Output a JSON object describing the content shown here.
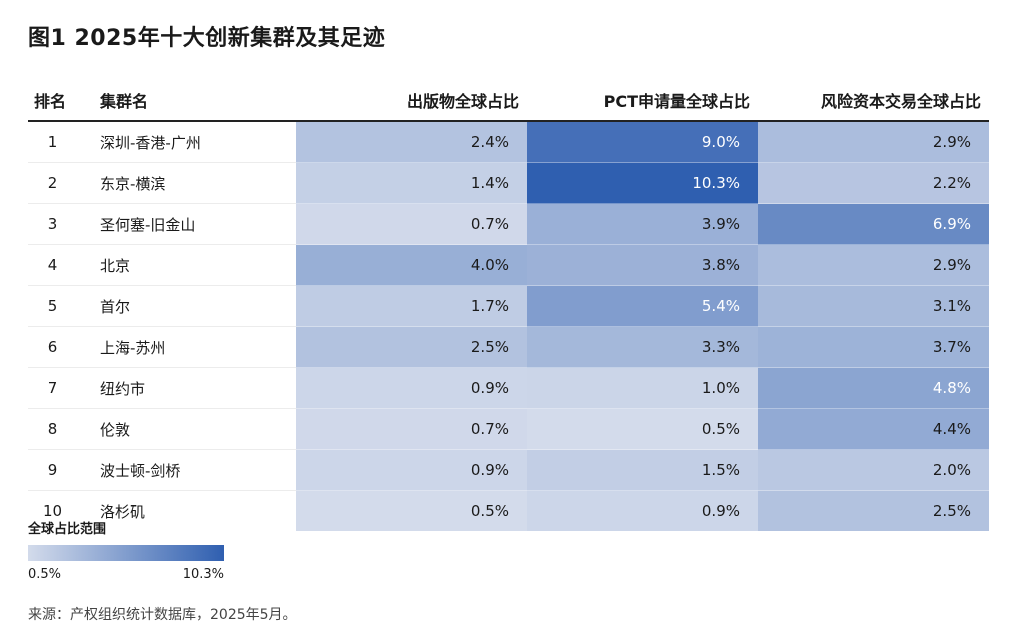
{
  "title": "图1 2025年十大创新集群及其足迹",
  "headers": {
    "rank": "排名",
    "name": "集群名",
    "pub": "出版物全球占比",
    "pct": "PCT申请量全球占比",
    "vc": "风险资本交易全球占比"
  },
  "rows": [
    {
      "rank": "1",
      "name": "深圳-香港-广州",
      "pub": "2.4%",
      "pct": "9.0%",
      "vc": "2.9%"
    },
    {
      "rank": "2",
      "name": "东京-横滨",
      "pub": "1.4%",
      "pct": "10.3%",
      "vc": "2.2%"
    },
    {
      "rank": "3",
      "name": "圣何塞-旧金山",
      "pub": "0.7%",
      "pct": "3.9%",
      "vc": "6.9%"
    },
    {
      "rank": "4",
      "name": "北京",
      "pub": "4.0%",
      "pct": "3.8%",
      "vc": "2.9%"
    },
    {
      "rank": "5",
      "name": "首尔",
      "pub": "1.7%",
      "pct": "5.4%",
      "vc": "3.1%"
    },
    {
      "rank": "6",
      "name": "上海-苏州",
      "pub": "2.5%",
      "pct": "3.3%",
      "vc": "3.7%"
    },
    {
      "rank": "7",
      "name": "纽约市",
      "pub": "0.9%",
      "pct": "1.0%",
      "vc": "4.8%"
    },
    {
      "rank": "8",
      "name": "伦敦",
      "pub": "0.7%",
      "pct": "0.5%",
      "vc": "4.4%"
    },
    {
      "rank": "9",
      "name": "波士顿-剑桥",
      "pub": "0.9%",
      "pct": "1.5%",
      "vc": "2.0%"
    },
    {
      "rank": "10",
      "name": "洛杉矶",
      "pub": "0.5%",
      "pct": "0.9%",
      "vc": "2.5%"
    }
  ],
  "legend": {
    "title": "全球占比范围",
    "min_label": "0.5%",
    "max_label": "10.3%",
    "min_color": "#d3dbeb",
    "max_color": "#2f5fb0"
  },
  "source": "来源：产权组织统计数据库，2025年5月。"
}
